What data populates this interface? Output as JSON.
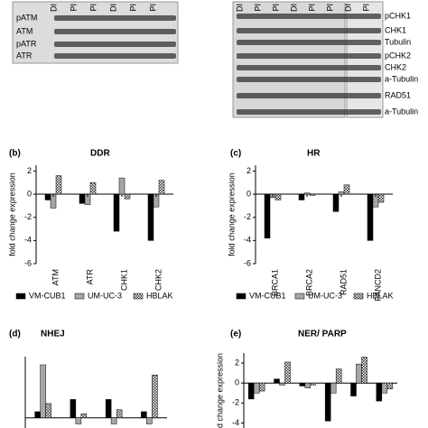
{
  "blots": {
    "left": {
      "lanes": [
        "DI",
        "PI",
        "PI",
        "DI",
        "PI",
        "PI"
      ],
      "rows": [
        "pATM",
        "ATM",
        "pATR",
        "ATR"
      ]
    },
    "right": {
      "lanes": [
        "DI",
        "PI",
        "PI",
        "DI",
        "PI",
        "PI",
        "DI",
        "PI"
      ],
      "rows": [
        "pCHK1",
        "CHK1",
        "Tubulin",
        "pCHK2",
        "CHK2",
        "a-Tubulin",
        "RAD51",
        "a-Tubulin"
      ]
    }
  },
  "chart_data": [
    {
      "type": "bar",
      "panel": "(b)",
      "title": "DDR",
      "ylabel": "fold change expression",
      "categories": [
        "ATM",
        "ATR",
        "CHK1",
        "CHK2"
      ],
      "series": [
        {
          "name": "VM-CUB1",
          "color": "#000000",
          "values": [
            -0.5,
            -0.8,
            -3.2,
            -4.0
          ]
        },
        {
          "name": "UM-UC-3",
          "color": "#a6a6a6",
          "values": [
            -1.2,
            -0.9,
            1.4,
            -1.1
          ]
        },
        {
          "name": "HBLAK",
          "color": "checker",
          "values": [
            1.6,
            1.0,
            -0.4,
            1.2
          ]
        }
      ],
      "ylim": [
        -6,
        2.5
      ],
      "yticks": [
        2,
        0,
        -2,
        -4,
        -6
      ]
    },
    {
      "type": "bar",
      "panel": "(c)",
      "title": "HR",
      "ylabel": "fold change expression",
      "categories": [
        "BRCA1",
        "BRCA2",
        "RAD51",
        "FANCD2"
      ],
      "series": [
        {
          "name": "VM-CUB1",
          "color": "#000000",
          "values": [
            -3.8,
            -0.5,
            -1.5,
            -4.0
          ]
        },
        {
          "name": "UM-UC-3",
          "color": "#a6a6a6",
          "values": [
            -0.3,
            0.1,
            0.2,
            -1.1
          ]
        },
        {
          "name": "HBLAK",
          "color": "checker",
          "values": [
            -0.5,
            -0.1,
            0.8,
            -0.7
          ]
        }
      ],
      "ylim": [
        -6,
        2.5
      ],
      "yticks": [
        2,
        0,
        -2,
        -4,
        -6
      ]
    },
    {
      "type": "bar",
      "panel": "(d)",
      "title": "NHEJ",
      "categories": [
        null,
        null,
        null,
        null
      ],
      "series": [
        {
          "name": "VM-CUB1",
          "color": "#000000",
          "values": [
            0.3,
            0.9,
            0.9,
            0.3
          ]
        },
        {
          "name": "UM-UC-3",
          "color": "#a6a6a6",
          "values": [
            2.6,
            -0.3,
            -0.3,
            -0.3
          ]
        },
        {
          "name": "HBLAK",
          "color": "checker",
          "values": [
            0.7,
            0.2,
            0.4,
            2.1
          ]
        }
      ],
      "ylim": [
        -0.5,
        3
      ]
    },
    {
      "type": "bar",
      "panel": "(e)",
      "title": "NER/ PARP",
      "ylabel": "d change expression",
      "categories": [
        null,
        null,
        null,
        null,
        null,
        null
      ],
      "series": [
        {
          "name": "VM-CUB1",
          "color": "#000000",
          "values": [
            -1.6,
            0.4,
            -0.3,
            -3.8,
            -1.3,
            -1.8
          ]
        },
        {
          "name": "UM-UC-3",
          "color": "#a6a6a6",
          "values": [
            -1.0,
            -0.2,
            -0.5,
            -1.0,
            1.9,
            -1.0
          ]
        },
        {
          "name": "HBLAK",
          "color": "checker",
          "values": [
            -0.8,
            2.1,
            -0.2,
            1.4,
            2.6,
            -0.6
          ]
        }
      ],
      "ylim": [
        -4.5,
        3
      ],
      "yticks": [
        2,
        0,
        -2,
        -4
      ]
    }
  ]
}
